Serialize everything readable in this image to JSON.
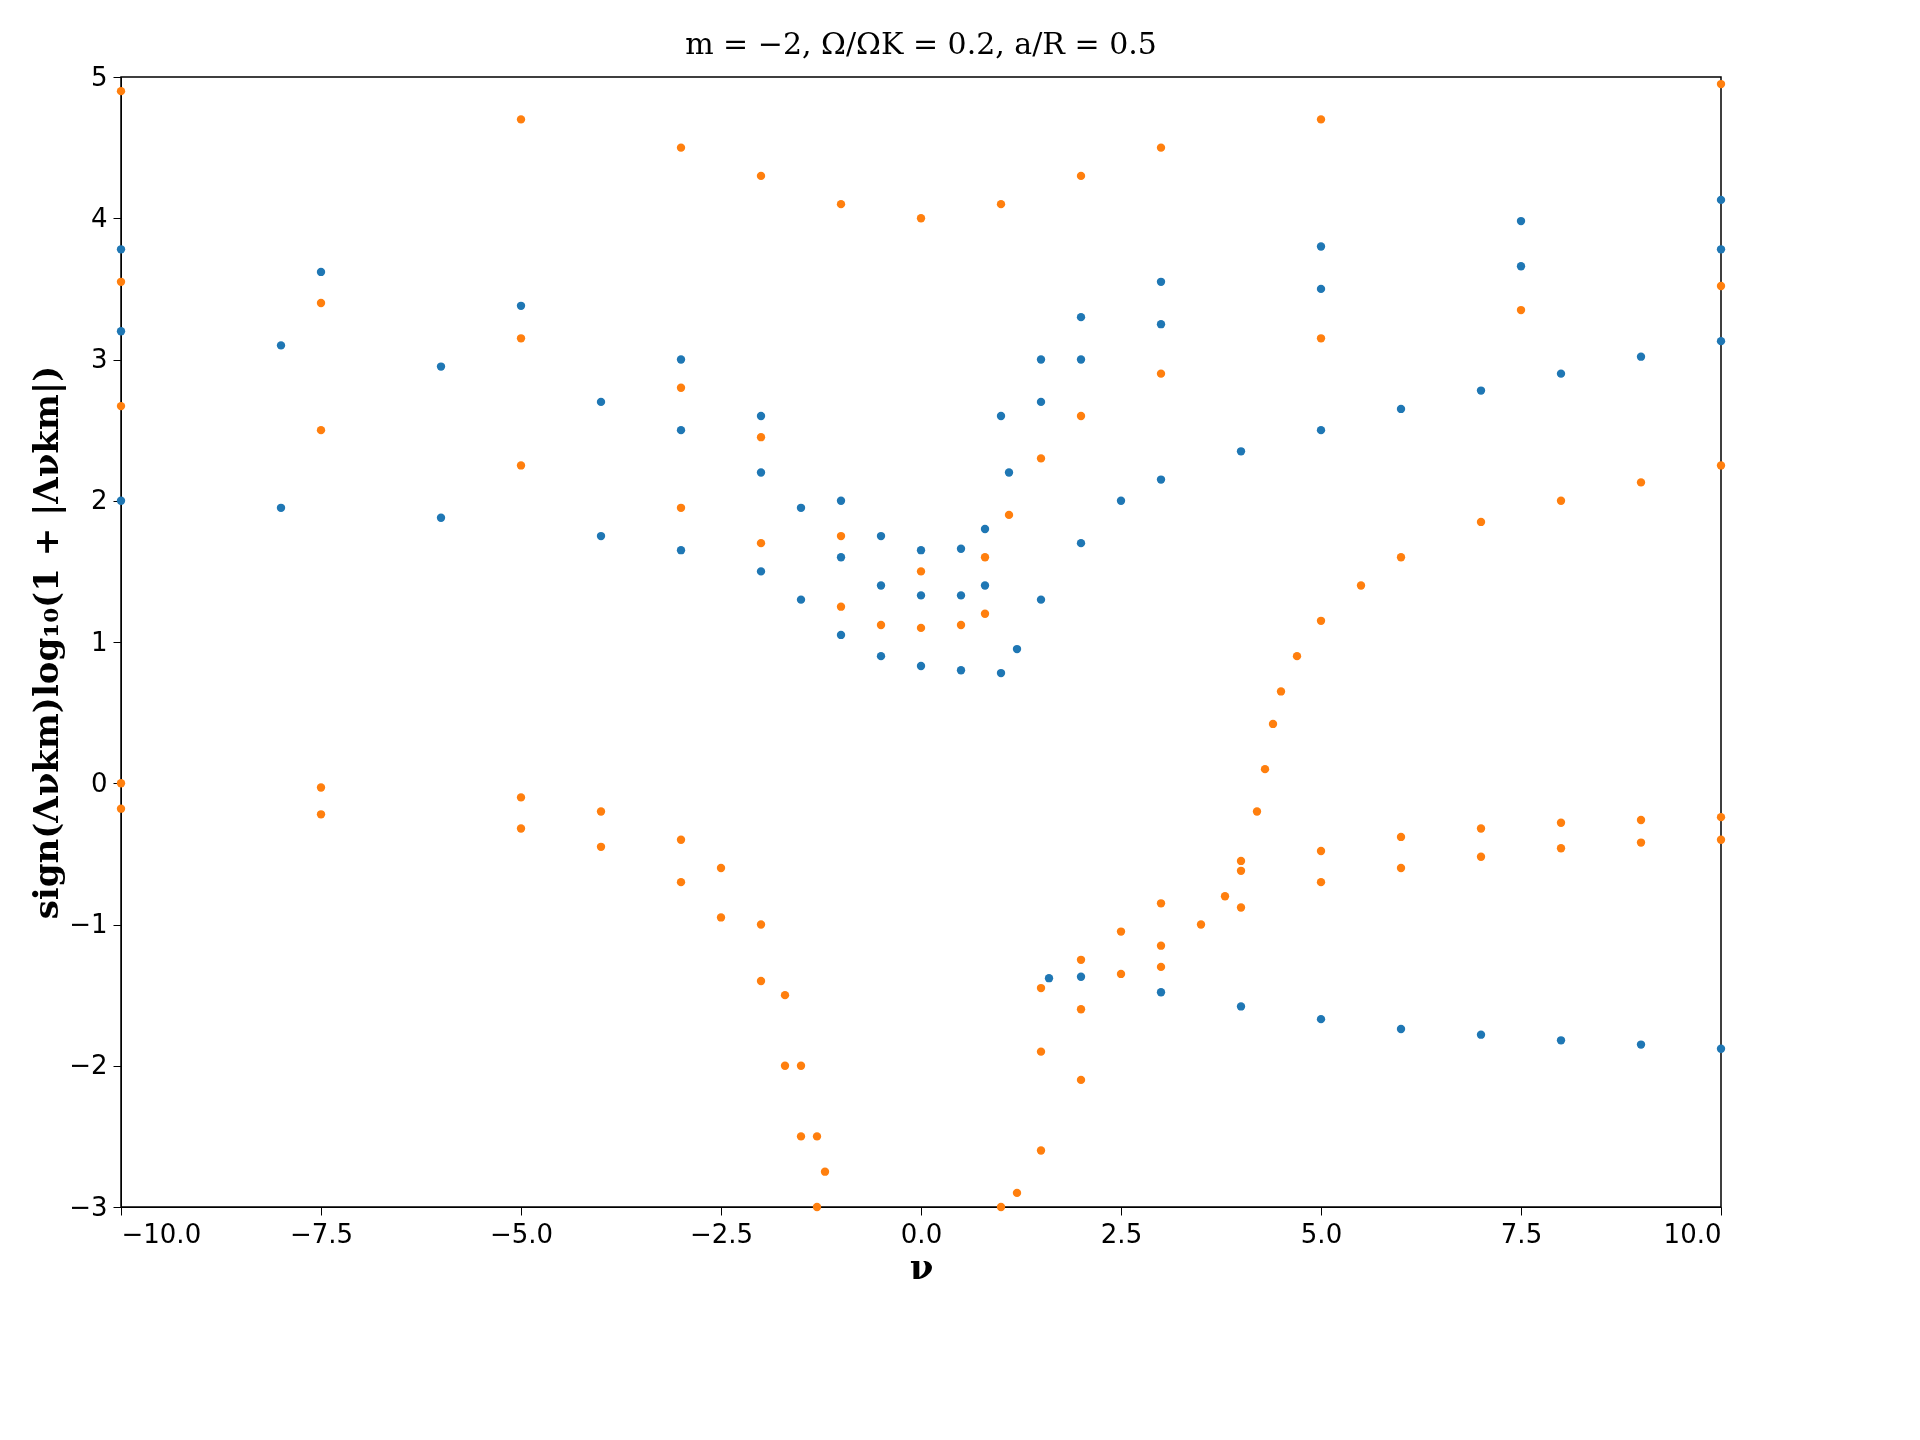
{
  "chart_data": {
    "type": "scatter",
    "title": "m = −2,  Ω/ΩK = 0.2,  a/R = 0.5",
    "xlabel": "ν",
    "ylabel": "sign(Λνkm)log₁₀(1 + |Λνkm|)",
    "xlim": [
      -10,
      10
    ],
    "ylim": [
      -3,
      5
    ],
    "xticks": [
      {
        "value": -10,
        "label": "−10.0"
      },
      {
        "value": -7.5,
        "label": "−7.5"
      },
      {
        "value": -5,
        "label": "−5.0"
      },
      {
        "value": -2.5,
        "label": "−2.5"
      },
      {
        "value": 0,
        "label": "0.0"
      },
      {
        "value": 2.5,
        "label": "2.5"
      },
      {
        "value": 5,
        "label": "5.0"
      },
      {
        "value": 7.5,
        "label": "7.5"
      },
      {
        "value": 10,
        "label": "10.0"
      }
    ],
    "yticks": [
      {
        "value": -3,
        "label": "−3"
      },
      {
        "value": -2,
        "label": "−2"
      },
      {
        "value": -1,
        "label": "−1"
      },
      0,
      1,
      2,
      3,
      4,
      5
    ],
    "grid": false,
    "legend": false,
    "marker": "circle",
    "series": [
      {
        "color": "#1f77b4",
        "x": [
          -10,
          -8,
          -6,
          -4,
          -3,
          -2,
          -1.5,
          -1,
          -0.5,
          0,
          0.5,
          1.0,
          1.2,
          1.5,
          2,
          2.5,
          3,
          4,
          5,
          6,
          7,
          8,
          9,
          10
        ],
        "values": [
          2.0,
          1.95,
          1.88,
          1.75,
          1.65,
          1.5,
          1.3,
          1.05,
          0.9,
          0.83,
          0.8,
          0.78,
          0.95,
          1.3,
          1.7,
          2.0,
          2.15,
          2.35,
          2.5,
          2.65,
          2.78,
          2.9,
          3.02,
          3.13
        ]
      },
      {
        "color": "#1f77b4",
        "x": [
          -10,
          -8,
          -6,
          -4,
          -3,
          -2,
          -1.5,
          -1,
          -0.5,
          0,
          0.5,
          0.8,
          1.1,
          1.5,
          2,
          3,
          5,
          7.5,
          10
        ],
        "values": [
          3.2,
          3.1,
          2.95,
          2.7,
          2.5,
          2.2,
          1.95,
          1.6,
          1.4,
          1.33,
          1.33,
          1.4,
          2.2,
          2.7,
          3.0,
          3.25,
          3.5,
          3.66,
          3.78
        ]
      },
      {
        "color": "#1f77b4",
        "x": [
          -10,
          -7.5,
          -5,
          -3,
          -2,
          -1,
          -0.5,
          0,
          0.5,
          0.8,
          1.0,
          1.5,
          2,
          3,
          5,
          7.5,
          10
        ],
        "values": [
          3.78,
          3.62,
          3.38,
          3.0,
          2.6,
          2.0,
          1.75,
          1.65,
          1.66,
          1.8,
          2.6,
          3.0,
          3.3,
          3.55,
          3.8,
          3.98,
          4.13
        ]
      },
      {
        "color": "#1f77b4",
        "x": [
          1.6,
          2,
          3,
          4,
          5,
          6,
          7,
          8,
          9,
          10
        ],
        "values": [
          -1.38,
          -1.37,
          -1.48,
          -1.58,
          -1.67,
          -1.74,
          -1.78,
          -1.82,
          -1.85,
          -1.88
        ]
      },
      {
        "color": "#ff7f0e",
        "x": [
          -10,
          -7.5,
          -5,
          -3,
          -2,
          -1,
          -0.5,
          0,
          0.5,
          0.8
        ],
        "values": [
          2.67,
          2.5,
          2.25,
          1.95,
          1.7,
          1.25,
          1.12,
          1.1,
          1.12,
          1.2
        ]
      },
      {
        "color": "#ff7f0e",
        "x": [
          -10,
          -7.5,
          -5,
          -3,
          -2,
          -1,
          0,
          0.8,
          1.1,
          1.5,
          2,
          3,
          5,
          7.5,
          10
        ],
        "values": [
          3.55,
          3.4,
          3.15,
          2.8,
          2.45,
          1.75,
          1.5,
          1.6,
          1.9,
          2.3,
          2.6,
          2.9,
          3.15,
          3.35,
          3.52
        ]
      },
      {
        "color": "#ff7f0e",
        "x": [
          -10,
          -5,
          -3,
          -2,
          -1,
          0,
          1,
          2,
          3,
          5,
          10
        ],
        "values": [
          4.9,
          4.7,
          4.5,
          4.3,
          4.1,
          4.0,
          4.1,
          4.3,
          4.5,
          4.7,
          4.95
        ]
      },
      {
        "color": "#ff7f0e",
        "x": [
          1.0,
          1.2,
          1.5,
          2,
          3,
          3.5,
          3.8,
          4.0,
          4.2,
          4.3,
          4.4,
          4.5,
          4.7,
          5,
          5.5,
          6,
          7,
          8,
          9,
          10
        ],
        "values": [
          -3,
          -2.9,
          -2.6,
          -2.1,
          -1.3,
          -1.0,
          -0.8,
          -0.55,
          -0.2,
          0.1,
          0.42,
          0.65,
          0.9,
          1.15,
          1.4,
          1.6,
          1.85,
          2.0,
          2.13,
          2.25
        ]
      },
      {
        "color": "#ff7f0e",
        "x": [
          -10,
          -7.5,
          -5,
          -4,
          -3,
          -2.5,
          -2,
          -1.7,
          -1.5,
          -1.3,
          -1.2
        ],
        "values": [
          0,
          -0.03,
          -0.1,
          -0.2,
          -0.4,
          -0.6,
          -1.0,
          -1.5,
          -2.0,
          -2.5,
          -2.75
        ]
      },
      {
        "color": "#ff7f0e",
        "x": [
          -10,
          -7.5,
          -5,
          -4,
          -3,
          -2.5,
          -2,
          -1.7,
          -1.5,
          -1.3
        ],
        "values": [
          -0.18,
          -0.22,
          -0.32,
          -0.45,
          -0.7,
          -0.95,
          -1.4,
          -2.0,
          -2.5,
          -3.0
        ]
      },
      {
        "color": "#ff7f0e",
        "x": [
          1.5,
          2,
          2.5,
          3,
          4,
          5,
          6,
          7,
          8,
          9,
          10
        ],
        "values": [
          -1.45,
          -1.25,
          -1.05,
          -0.85,
          -0.62,
          -0.48,
          -0.38,
          -0.32,
          -0.28,
          -0.26,
          -0.24
        ]
      },
      {
        "color": "#ff7f0e",
        "x": [
          1.5,
          2,
          2.5,
          3,
          4,
          5,
          6,
          7,
          8,
          9,
          10
        ],
        "values": [
          -1.9,
          -1.6,
          -1.35,
          -1.15,
          -0.88,
          -0.7,
          -0.6,
          -0.52,
          -0.46,
          -0.42,
          -0.4
        ]
      }
    ]
  }
}
